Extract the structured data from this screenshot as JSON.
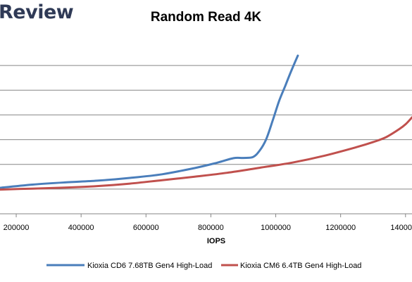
{
  "header": {
    "brand": "Review"
  },
  "chart_data": {
    "type": "line",
    "title": "Random Read 4K",
    "xlabel": "IOPS",
    "ylabel": "",
    "xlim": [
      150000,
      1420000
    ],
    "ylim": [
      0,
      7
    ],
    "x_ticks": [
      200000,
      400000,
      600000,
      800000,
      1000000,
      1200000,
      1400000
    ],
    "x_tick_labels": [
      "200000",
      "400000",
      "600000",
      "800000",
      "1000000",
      "1200000",
      "1400000"
    ],
    "y_gridlines": [
      1,
      2,
      3,
      4,
      5,
      6
    ],
    "grid": true,
    "legend_position": "bottom",
    "series": [
      {
        "name": "Kioxia CD6 7.68TB Gen4 High-Load",
        "color": "#4a7ebb",
        "x": [
          150000,
          250000,
          350000,
          450000,
          550000,
          650000,
          750000,
          820000,
          870000,
          900000,
          930000,
          950000,
          970000,
          990000,
          1010000,
          1030000,
          1050000,
          1068000
        ],
        "y": [
          1.05,
          1.18,
          1.27,
          1.34,
          1.45,
          1.6,
          1.85,
          2.07,
          2.25,
          2.26,
          2.3,
          2.55,
          3.0,
          3.75,
          4.55,
          5.2,
          5.85,
          6.4
        ]
      },
      {
        "name": "Kioxia CM6 6.4TB Gen4 High-Load",
        "color": "#c0504d",
        "x": [
          150000,
          250000,
          350000,
          450000,
          550000,
          650000,
          750000,
          850000,
          950000,
          1050000,
          1150000,
          1250000,
          1300000,
          1340000,
          1380000,
          1400000,
          1420000
        ],
        "y": [
          0.98,
          1.02,
          1.06,
          1.12,
          1.22,
          1.36,
          1.5,
          1.66,
          1.86,
          2.07,
          2.35,
          2.7,
          2.9,
          3.1,
          3.42,
          3.62,
          3.9
        ]
      }
    ]
  }
}
